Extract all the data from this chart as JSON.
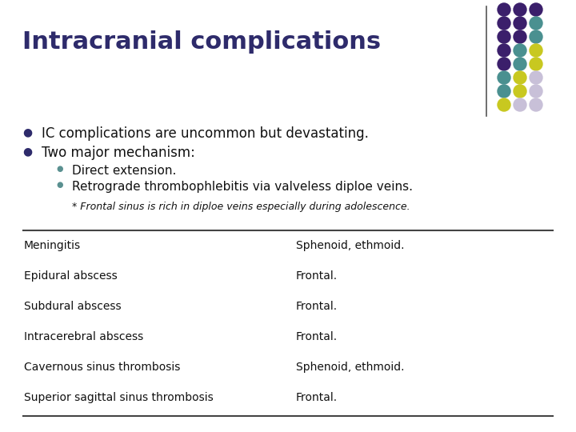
{
  "title": "Intracranial complications",
  "title_color": "#2E2B6B",
  "background_color": "#FFFFFF",
  "bullet1": "IC complications are uncommon but devastating.",
  "bullet2": "Two major mechanism:",
  "sub_bullet1": "Direct extension.",
  "sub_bullet2": "Retrograde thrombophlebitis via valveless diploe veins.",
  "footnote": "* Frontal sinus is rich in diploe veins especially during adolescence.",
  "table_rows": [
    [
      "Meningitis",
      "Sphenoid, ethmoid."
    ],
    [
      "Epidural abscess",
      "Frontal."
    ],
    [
      "Subdural abscess",
      "Frontal."
    ],
    [
      "Intracerebral abscess",
      "Frontal."
    ],
    [
      "Cavernous sinus thrombosis",
      "Sphenoid, ethmoid."
    ],
    [
      "Superior sagittal sinus thrombosis",
      "Frontal."
    ]
  ],
  "dot_colors": [
    [
      "#3B1F6B",
      "#3B1F6B",
      "#3B1F6B"
    ],
    [
      "#3B1F6B",
      "#3B1F6B",
      "#4A9090"
    ],
    [
      "#3B1F6B",
      "#3B1F6B",
      "#4A9090"
    ],
    [
      "#3B1F6B",
      "#4A9090",
      "#C8C820"
    ],
    [
      "#3B1F6B",
      "#4A9090",
      "#C8C820"
    ],
    [
      "#4A9090",
      "#C8C820",
      "#C8C0D8"
    ],
    [
      "#4A9090",
      "#C8C820",
      "#C8C0D8"
    ],
    [
      "#C8C820",
      "#C8C0D8",
      "#C8C0D8"
    ]
  ],
  "title_fontsize": 22,
  "body_fontsize": 12,
  "sub_fontsize": 11,
  "footnote_fontsize": 9,
  "table_fontsize": 10,
  "line_color": "#444444",
  "text_color": "#111111",
  "bullet_color": "#2E2B6B",
  "sub_bullet_color": "#5A9090"
}
